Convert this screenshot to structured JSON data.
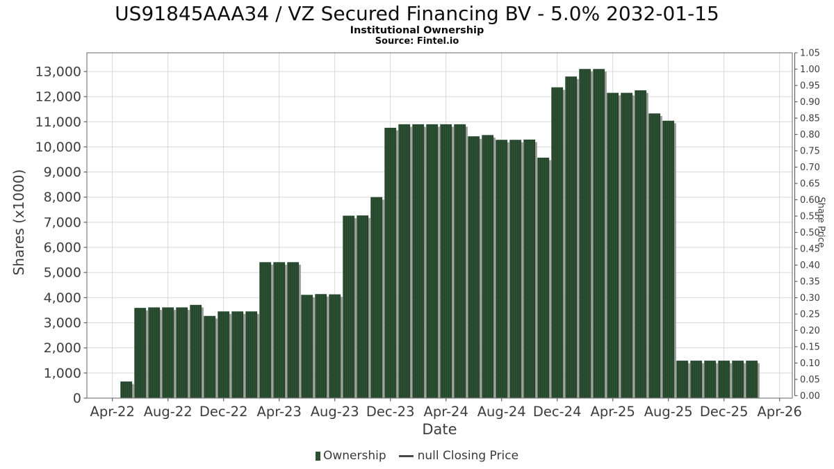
{
  "title": "US91845AAA34 / VZ Secured Financing BV - 5.0% 2032-01-15",
  "subtitle": "Institutional Ownership",
  "source": "Source: Fintel.io",
  "chart_data": {
    "type": "bar",
    "title": "US91845AAA34 / VZ Secured Financing BV - 5.0% 2032-01-15",
    "subtitle": "Institutional Ownership",
    "source": "Source: Fintel.io",
    "xlabel": "Date",
    "ylabel": "Shares (x1000)",
    "y2label": "Share Price",
    "grid": true,
    "legend_position": "bottom",
    "categories": [
      "May-22",
      "Jun-22",
      "Jul-22",
      "Aug-22",
      "Sep-22",
      "Oct-22",
      "Nov-22",
      "Dec-22",
      "Jan-23",
      "Feb-23",
      "Mar-23",
      "Apr-23",
      "May-23",
      "Jun-23",
      "Jul-23",
      "Aug-23",
      "Sep-23",
      "Oct-23",
      "Nov-23",
      "Dec-23",
      "Jan-24",
      "Feb-24",
      "Mar-24",
      "Apr-24",
      "May-24",
      "Jun-24",
      "Jul-24",
      "Aug-24",
      "Sep-24",
      "Oct-24",
      "Nov-24",
      "Dec-24",
      "Jan-25",
      "Feb-25",
      "Mar-25",
      "Apr-25",
      "May-25",
      "Jun-25",
      "Jul-25",
      "Aug-25",
      "Sep-25",
      "Oct-25",
      "Nov-25",
      "Dec-25",
      "Jan-26",
      "Feb-26"
    ],
    "values": [
      650,
      3580,
      3600,
      3600,
      3600,
      3700,
      3260,
      3440,
      3440,
      3440,
      5400,
      5400,
      5400,
      4100,
      4130,
      4120,
      7250,
      7260,
      7990,
      10750,
      10890,
      10890,
      10890,
      10890,
      10890,
      10410,
      10460,
      10270,
      10270,
      10280,
      9560,
      12360,
      12790,
      13090,
      13090,
      12140,
      12140,
      12240,
      11320,
      11030,
      1480,
      1480,
      1480,
      1480,
      1480,
      1480
    ],
    "series_name": "Ownership",
    "secondary_series_name": "null Closing Price",
    "secondary_series_values": null,
    "ylim": [
      0,
      13745
    ],
    "y2lim": [
      0,
      1.05
    ],
    "y_ticks": [
      0,
      1000,
      2000,
      3000,
      4000,
      5000,
      6000,
      7000,
      8000,
      9000,
      10000,
      11000,
      12000,
      13000
    ],
    "x_tick_labels": [
      "Apr-22",
      "Aug-22",
      "Dec-22",
      "Apr-23",
      "Aug-23",
      "Dec-23",
      "Apr-24",
      "Aug-24",
      "Dec-24",
      "Apr-25",
      "Aug-25",
      "Dec-25",
      "Apr-26"
    ],
    "y2_ticks": [
      "0.00",
      "0.05",
      "0.10",
      "0.15",
      "0.20",
      "0.25",
      "0.30",
      "0.35",
      "0.40",
      "0.45",
      "0.50",
      "0.55",
      "0.60",
      "0.65",
      "0.70",
      "0.75",
      "0.80",
      "0.85",
      "0.90",
      "0.95",
      "1.00",
      "1.05"
    ],
    "legend": {
      "ownership": "Ownership",
      "closing_price": "null Closing Price"
    },
    "bar_color": "#2d5033",
    "bar_stripe_color": "#22422a",
    "bar_edge_color": "#24452a",
    "shadow_color": "#9c9c9c",
    "grid_color": "#d8d8d8",
    "frame_color": "#7f7f7f",
    "text_color": "#3d3d3d"
  }
}
